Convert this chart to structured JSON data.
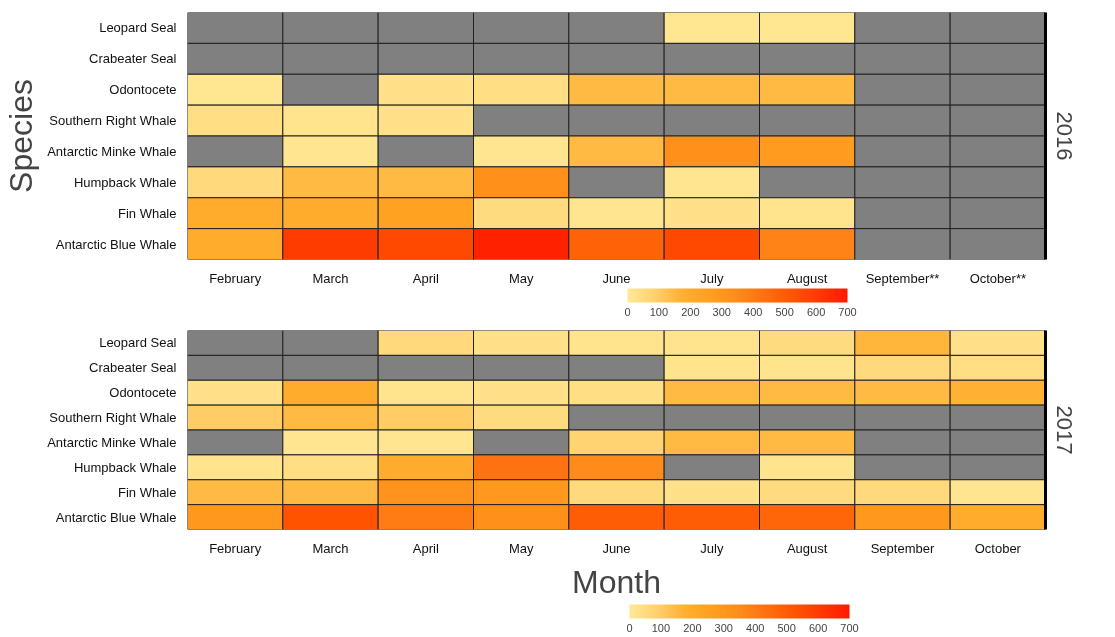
{
  "chart_data": [
    {
      "type": "heatmap",
      "ylabel": "Species",
      "y2label": "2016",
      "categories": [
        "February",
        "March",
        "April",
        "May",
        "June",
        "July",
        "August",
        "September**",
        "October**"
      ],
      "y_categories": [
        "Leopard Seal",
        "Crabeater Seal",
        "Odontocete",
        "Southern Right Whale",
        "Antarctic Minke Whale",
        "Humpback Whale",
        "Fin Whale",
        "Antarctic Blue Whale"
      ],
      "cells": [
        [
          null,
          null,
          null,
          null,
          null,
          10,
          10,
          null,
          null
        ],
        [
          null,
          null,
          null,
          null,
          null,
          null,
          null,
          null,
          null
        ],
        [
          10,
          null,
          30,
          40,
          150,
          150,
          150,
          null,
          null
        ],
        [
          40,
          20,
          30,
          null,
          null,
          null,
          null,
          null,
          null
        ],
        [
          null,
          15,
          null,
          15,
          150,
          330,
          280,
          null,
          null
        ],
        [
          60,
          150,
          150,
          330,
          null,
          15,
          null,
          null,
          null
        ],
        [
          200,
          200,
          250,
          50,
          15,
          30,
          20,
          null,
          null
        ],
        [
          200,
          600,
          560,
          680,
          480,
          560,
          380,
          null,
          null
        ]
      ],
      "clim": [
        0,
        700
      ],
      "cticks": [
        0,
        100,
        200,
        300,
        400,
        500,
        600,
        700
      ]
    },
    {
      "type": "heatmap",
      "xlabel": "Month",
      "y2label": "2017",
      "categories": [
        "February",
        "March",
        "April",
        "May",
        "June",
        "July",
        "August",
        "September",
        "October"
      ],
      "y_categories": [
        "Leopard Seal",
        "Crabeater Seal",
        "Odontocete",
        "Southern Right Whale",
        "Antarctic Minke Whale",
        "Humpback Whale",
        "Fin Whale",
        "Antarctic Blue Whale"
      ],
      "cells": [
        [
          null,
          null,
          60,
          30,
          20,
          20,
          50,
          160,
          30
        ],
        [
          null,
          null,
          null,
          null,
          null,
          20,
          20,
          60,
          40
        ],
        [
          30,
          200,
          20,
          30,
          40,
          150,
          150,
          150,
          170
        ],
        [
          100,
          150,
          100,
          50,
          null,
          null,
          null,
          null,
          null
        ],
        [
          null,
          15,
          15,
          null,
          80,
          150,
          150,
          null,
          null
        ],
        [
          20,
          40,
          200,
          430,
          350,
          null,
          20,
          null,
          null
        ],
        [
          150,
          150,
          320,
          300,
          60,
          30,
          50,
          60,
          15
        ],
        [
          300,
          530,
          400,
          330,
          500,
          500,
          470,
          300,
          200
        ]
      ],
      "clim": [
        0,
        700
      ],
      "cticks": [
        0,
        100,
        200,
        300,
        400,
        500,
        600,
        700
      ]
    }
  ]
}
